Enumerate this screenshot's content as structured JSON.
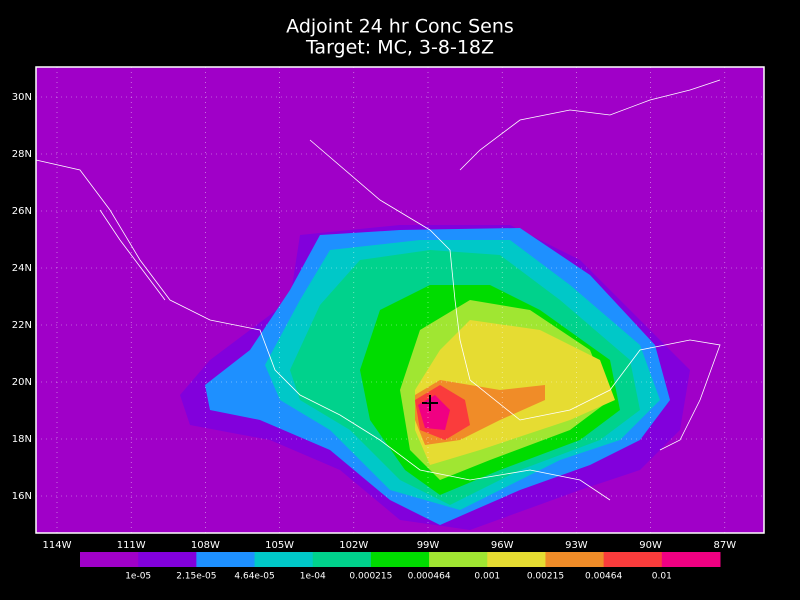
{
  "title": [
    "Adjoint 24 hr Conc Sens",
    "Target: MC, 3-8-18Z"
  ],
  "map": {
    "lat_labels": [
      "30N",
      "28N",
      "26N",
      "24N",
      "22N",
      "20N",
      "18N",
      "16N"
    ],
    "lon_labels": [
      "114W",
      "111W",
      "108W",
      "105W",
      "102W",
      "99W",
      "96W",
      "93W",
      "90W",
      "87W"
    ],
    "grid": true
  },
  "colorbar": {
    "labels": [
      "1e-05",
      "2.15e-05",
      "4.64e-05",
      "1e-04",
      "0.000215",
      "0.000464",
      "0.001",
      "0.00215",
      "0.00464",
      "0.01"
    ],
    "colors": [
      "#a000c8",
      "#8200dc",
      "#1e90ff",
      "#00c8c8",
      "#00d28c",
      "#00dc00",
      "#a0e632",
      "#e6dc32",
      "#f08c28",
      "#fa3c3c",
      "#f00082"
    ]
  }
}
